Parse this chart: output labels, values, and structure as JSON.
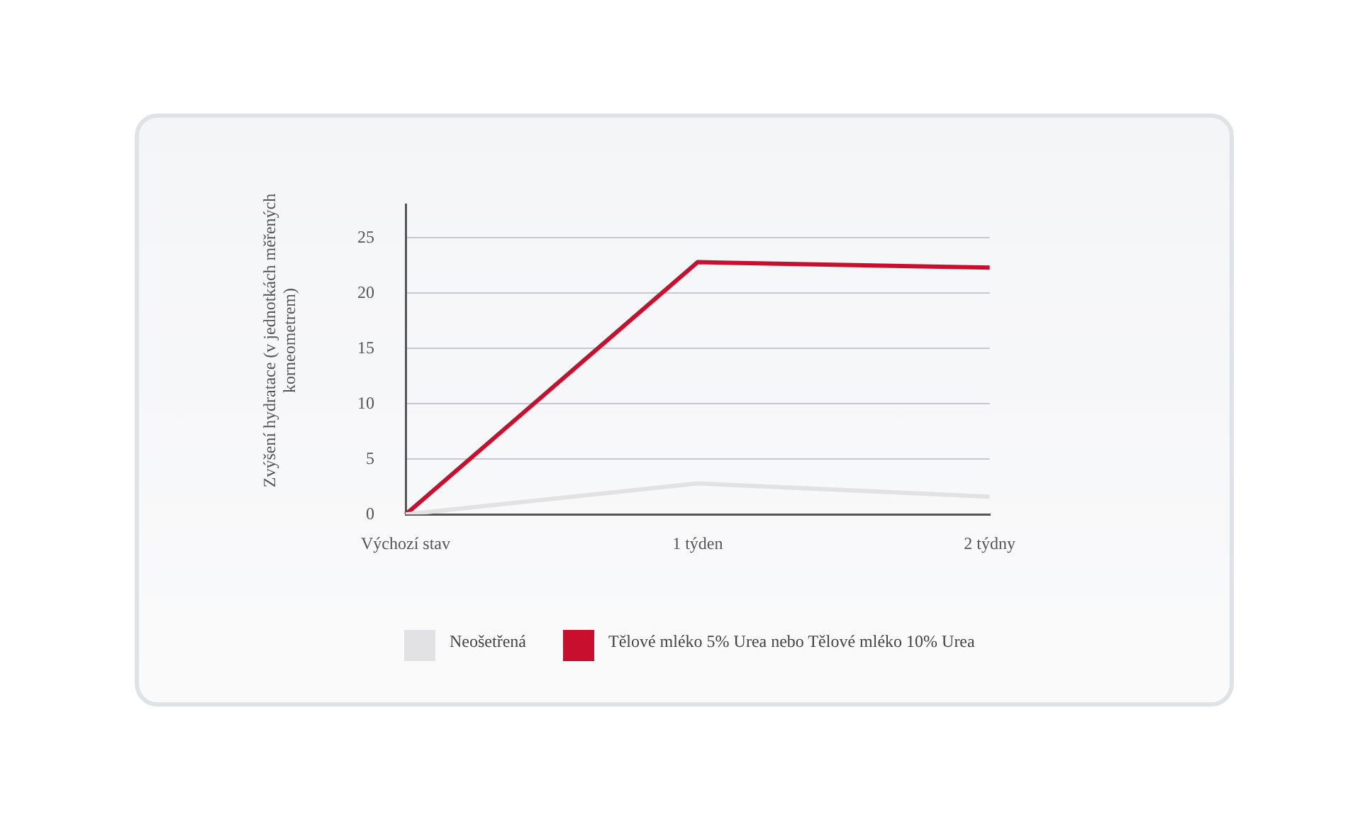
{
  "chart_data": {
    "type": "line",
    "ylabel": "Zvýšení hydratace (v jednotkách měřených korneometrem)",
    "categories": [
      "Výchozí stav",
      "1 týden",
      "2 týdny"
    ],
    "series": [
      {
        "name": "Neošetřená",
        "color": "#e2e2e4",
        "values": [
          0,
          2.8,
          1.6
        ]
      },
      {
        "name": "Tělové mléko 5% Urea nebo Tělové mléko 10% Urea",
        "color": "#c8102e",
        "values": [
          0,
          22.8,
          22.3
        ]
      }
    ],
    "ylim": [
      0,
      28
    ],
    "yticks": [
      0,
      5,
      10,
      15,
      20,
      25
    ],
    "grid": "y",
    "legend": "bottom",
    "marker": "none",
    "line_style": "solid"
  }
}
